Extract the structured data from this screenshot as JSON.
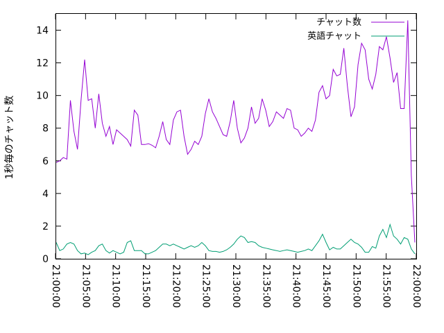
{
  "chart_data": {
    "type": "line",
    "title": "",
    "xlabel": "",
    "ylabel": "1秒毎のチャット数",
    "x_range": [
      "21:00:00",
      "22:00:00"
    ],
    "ylim": [
      0,
      15
    ],
    "x_ticks": [
      "21:00:00",
      "21:05:00",
      "21:10:00",
      "21:15:00",
      "21:20:00",
      "21:25:00",
      "21:30:00",
      "21:35:00",
      "21:40:00",
      "21:45:00",
      "21:50:00",
      "21:55:00",
      "22:00:00"
    ],
    "y_ticks": [
      "0",
      "2",
      "4",
      "6",
      "8",
      "10",
      "12",
      "14"
    ],
    "grid": false,
    "legend_position": "top-right",
    "series": [
      {
        "name": "チャット数",
        "color": "#9400d3",
        "values": [
          5.9,
          6.0,
          6.2,
          6.1,
          9.7,
          7.8,
          6.7,
          9.7,
          12.2,
          9.7,
          9.8,
          8.0,
          10.1,
          8.3,
          7.5,
          8.1,
          7.0,
          7.9,
          7.7,
          7.5,
          7.3,
          6.9,
          9.1,
          8.8,
          7.0,
          7.0,
          7.05,
          6.95,
          6.8,
          7.5,
          8.4,
          7.3,
          7.0,
          8.5,
          9.0,
          9.1,
          7.5,
          6.4,
          6.7,
          7.2,
          7.0,
          7.5,
          8.9,
          9.8,
          9.0,
          8.6,
          8.1,
          7.6,
          7.5,
          8.4,
          9.7,
          8.0,
          7.1,
          7.4,
          8.0,
          9.3,
          8.3,
          8.6,
          9.8,
          9.1,
          8.1,
          8.4,
          9.0,
          8.8,
          8.6,
          9.2,
          9.1,
          8.0,
          7.9,
          7.5,
          7.7,
          8.0,
          7.8,
          8.5,
          10.2,
          10.6,
          9.8,
          10.0,
          11.6,
          11.2,
          11.3,
          12.9,
          10.6,
          8.7,
          9.3,
          11.9,
          13.2,
          12.8,
          11.0,
          10.4,
          11.3,
          13.0,
          12.8,
          13.6,
          12.3,
          10.8,
          11.4,
          9.2,
          9.2,
          14.6,
          5.1,
          1.0
        ]
      },
      {
        "name": "英語チャット",
        "color": "#009e73",
        "values": [
          1.0,
          0.5,
          0.6,
          0.9,
          1.0,
          0.9,
          0.5,
          0.3,
          0.35,
          0.25,
          0.4,
          0.5,
          0.8,
          0.9,
          0.5,
          0.35,
          0.5,
          0.4,
          0.3,
          0.4,
          1.0,
          1.1,
          0.5,
          0.5,
          0.5,
          0.3,
          0.3,
          0.4,
          0.5,
          0.7,
          0.9,
          0.9,
          0.8,
          0.9,
          0.8,
          0.7,
          0.6,
          0.7,
          0.8,
          0.7,
          0.8,
          1.0,
          0.8,
          0.5,
          0.45,
          0.45,
          0.4,
          0.45,
          0.55,
          0.7,
          0.9,
          1.2,
          1.4,
          1.3,
          1.0,
          1.05,
          1.0,
          0.8,
          0.7,
          0.65,
          0.6,
          0.55,
          0.5,
          0.45,
          0.5,
          0.55,
          0.5,
          0.45,
          0.4,
          0.45,
          0.5,
          0.6,
          0.5,
          0.8,
          1.1,
          1.5,
          1.0,
          0.55,
          0.7,
          0.6,
          0.6,
          0.8,
          1.0,
          1.2,
          1.0,
          0.9,
          0.7,
          0.4,
          0.4,
          0.75,
          0.65,
          1.4,
          1.8,
          1.3,
          2.1,
          1.4,
          1.2,
          0.9,
          1.3,
          1.2,
          0.6,
          0.3
        ]
      }
    ]
  }
}
